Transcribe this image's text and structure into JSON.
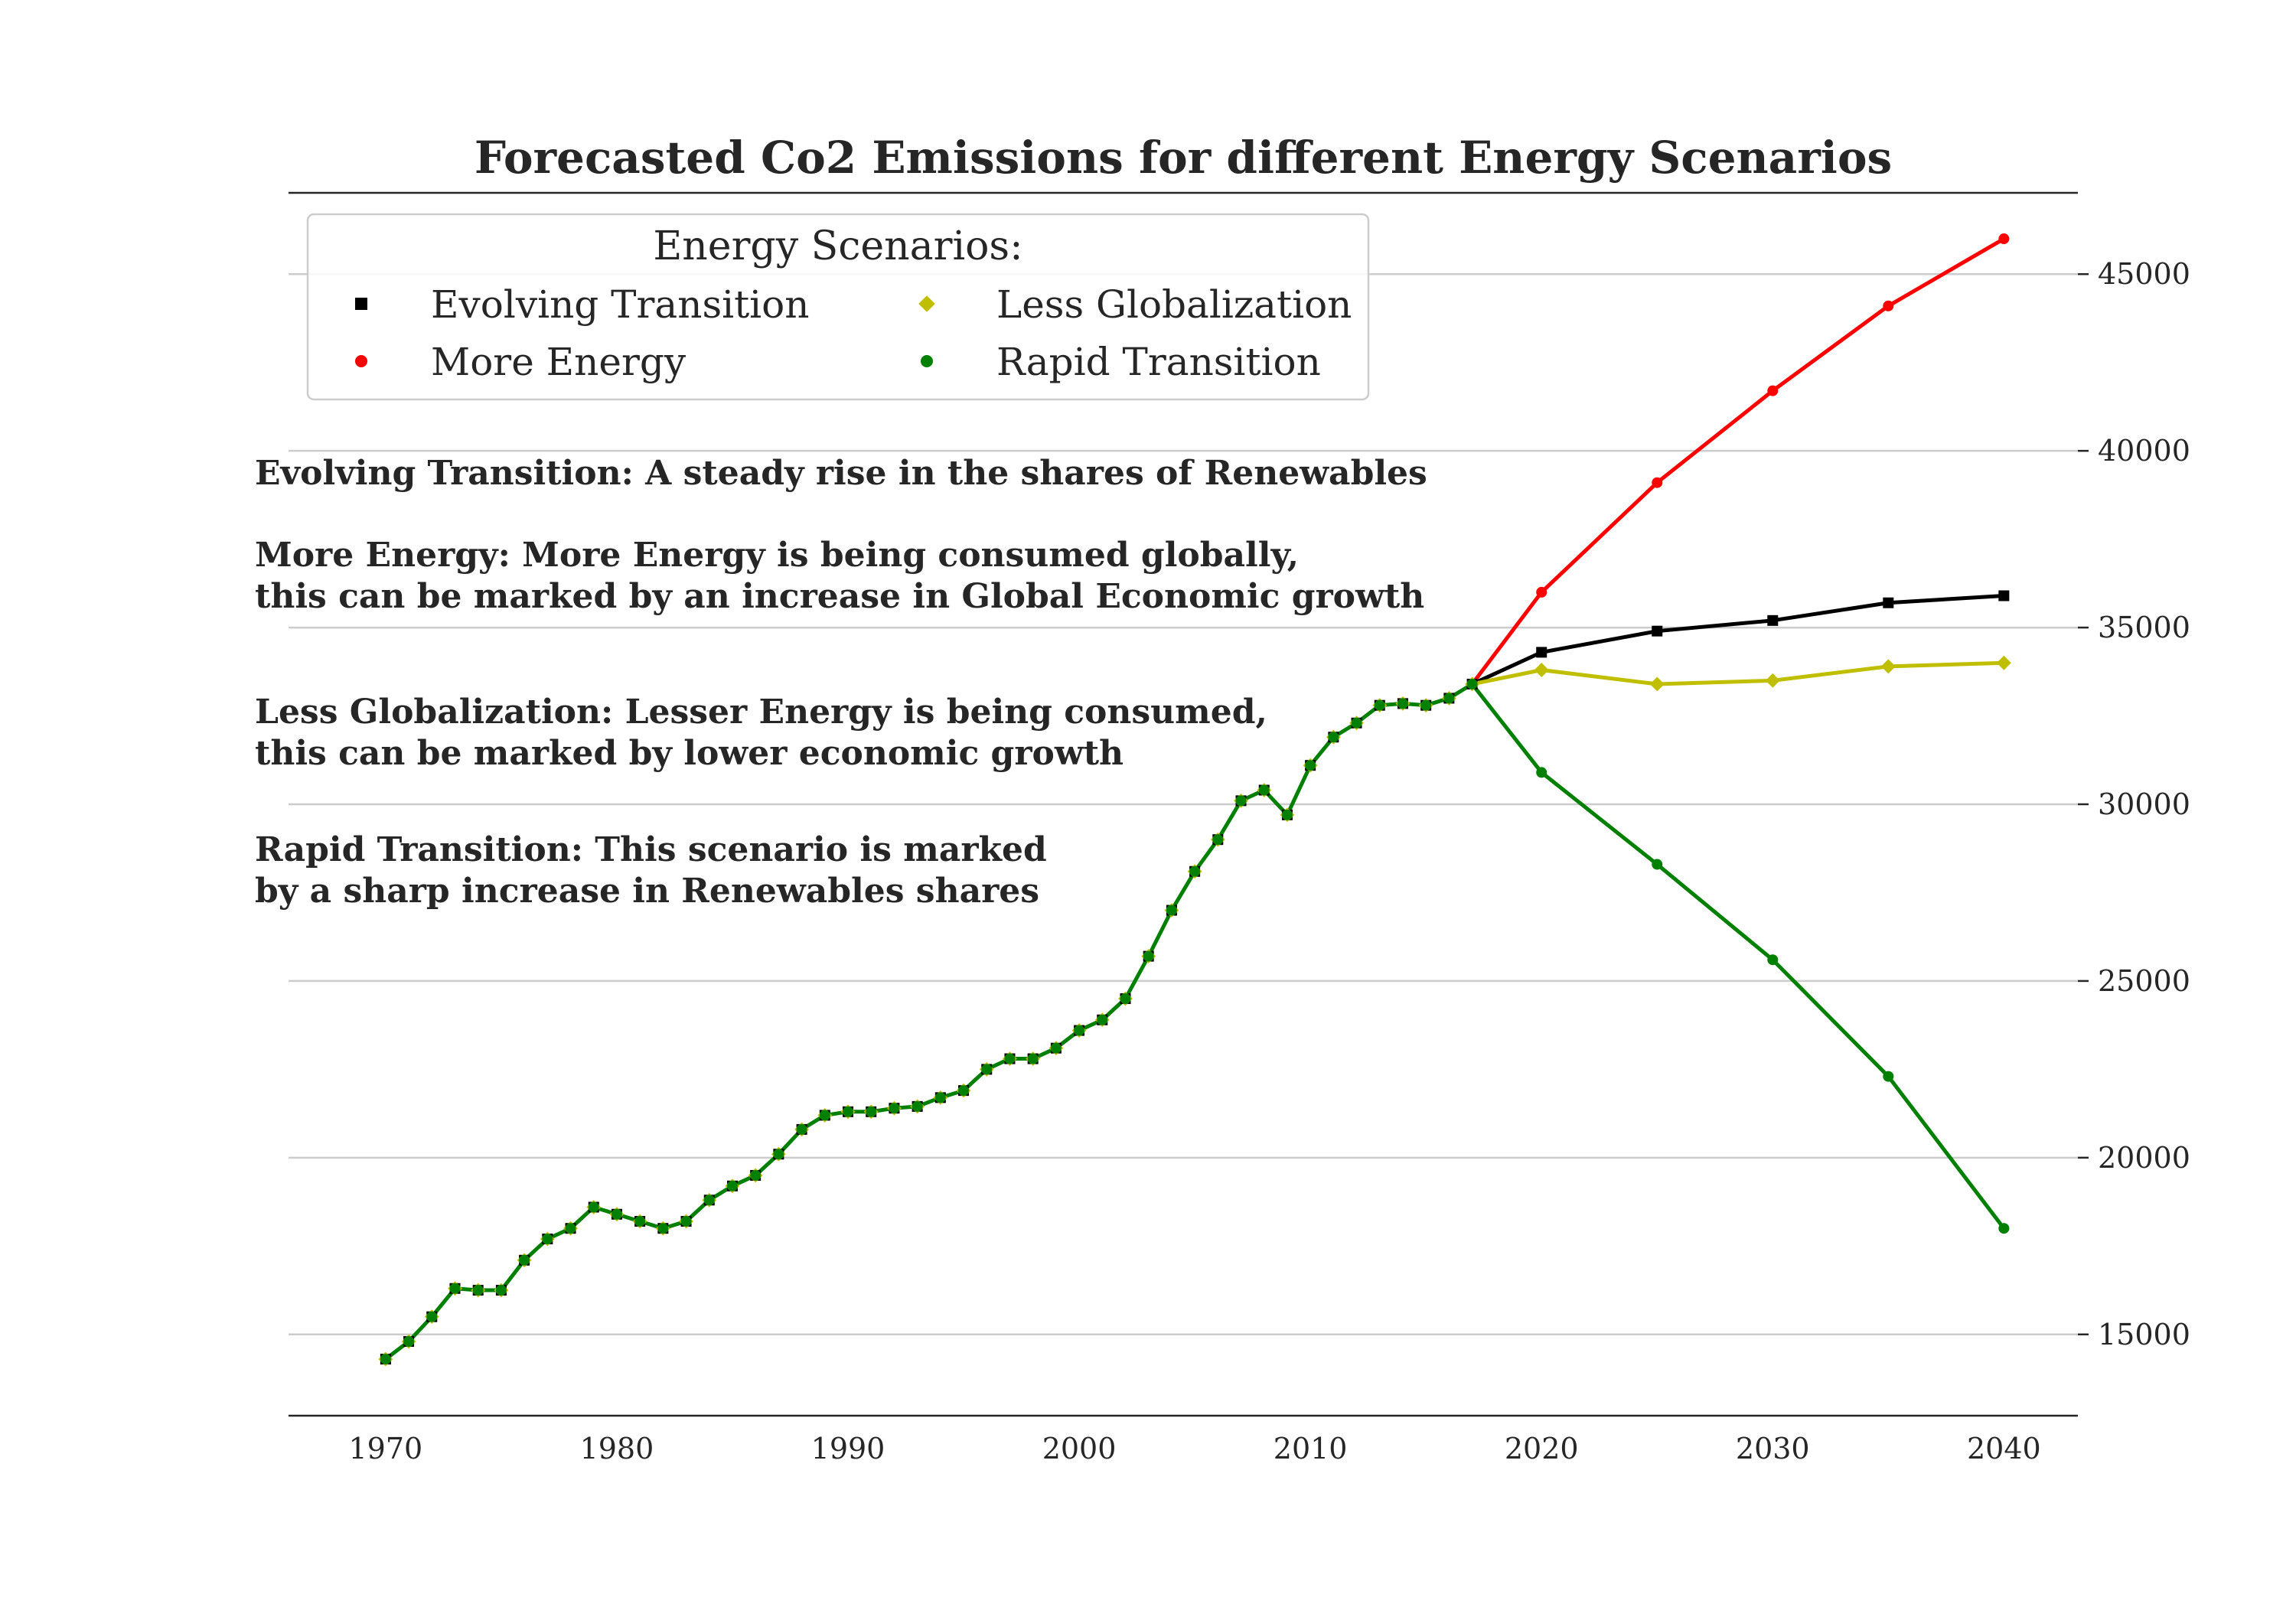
{
  "chart_data": {
    "type": "line",
    "title": "Forecasted Co2 Emissions for different Energy Scenarios",
    "xlabel": "",
    "ylabel": "",
    "xlim": [
      1965.8,
      2043.2
    ],
    "ylim": [
      12700,
      47300
    ],
    "x_ticks": [
      1970,
      1980,
      1990,
      2000,
      2010,
      2020,
      2030,
      2040
    ],
    "y_ticks": [
      15000,
      20000,
      25000,
      30000,
      35000,
      40000,
      45000
    ],
    "y_axis_side": "right",
    "grid": "horizontal",
    "legend": {
      "title": "Energy Scenarios:",
      "placement": "top-left",
      "columns": 2
    },
    "colors": {
      "Evolving Transition": "#000000",
      "More Energy": "#ff0000",
      "Less Globalization": "#bfbf00",
      "Rapid Transition": "#008000"
    },
    "markers": {
      "Evolving Transition": "square",
      "More Energy": "circle",
      "Less Globalization": "diamond",
      "Rapid Transition": "circle"
    },
    "historical": {
      "x": [
        1970,
        1971,
        1972,
        1973,
        1974,
        1975,
        1976,
        1977,
        1978,
        1979,
        1980,
        1981,
        1982,
        1983,
        1984,
        1985,
        1986,
        1987,
        1988,
        1989,
        1990,
        1991,
        1992,
        1993,
        1994,
        1995,
        1996,
        1997,
        1998,
        1999,
        2000,
        2001,
        2002,
        2003,
        2004,
        2005,
        2006,
        2007,
        2008,
        2009,
        2010,
        2011,
        2012,
        2013,
        2014,
        2015,
        2016,
        2017
      ],
      "y": [
        14300,
        14800,
        15500,
        16300,
        16250,
        16250,
        17100,
        17700,
        18000,
        18600,
        18400,
        18200,
        18000,
        18200,
        18800,
        19200,
        19500,
        20100,
        20800,
        21200,
        21300,
        21300,
        21400,
        21450,
        21700,
        21900,
        22500,
        22800,
        22800,
        23100,
        23600,
        23900,
        24500,
        25700,
        27000,
        28100,
        29000,
        30100,
        30400,
        29700,
        31100,
        31900,
        32300,
        32800,
        32850,
        32800,
        33000,
        33400
      ]
    },
    "series": [
      {
        "name": "Evolving Transition",
        "x": [
          2017,
          2020,
          2025,
          2030,
          2035,
          2040
        ],
        "y": [
          33400,
          34300,
          34900,
          35200,
          35700,
          35900
        ]
      },
      {
        "name": "More Energy",
        "x": [
          2017,
          2020,
          2025,
          2030,
          2035,
          2040
        ],
        "y": [
          33400,
          36000,
          39100,
          41700,
          44100,
          46000
        ]
      },
      {
        "name": "Less Globalization",
        "x": [
          2017,
          2020,
          2025,
          2030,
          2035,
          2040
        ],
        "y": [
          33400,
          33800,
          33400,
          33500,
          33900,
          34000
        ]
      },
      {
        "name": "Rapid Transition",
        "x": [
          2017,
          2020,
          2025,
          2030,
          2035,
          2040
        ],
        "y": [
          33400,
          30900,
          28300,
          25600,
          22300,
          18000
        ]
      }
    ],
    "annotations": [
      [
        "Evolving Transition: A steady rise in the shares of Renewables"
      ],
      [
        "More Energy: More Energy is being consumed globally,",
        "this can be marked by an increase in Global Economic growth"
      ],
      [
        "Less Globalization: Lesser Energy is being consumed,",
        "this can be marked by lower economic growth"
      ],
      [
        "Rapid Transition: This scenario is marked",
        "by a sharp increase in Renewables shares"
      ]
    ]
  }
}
